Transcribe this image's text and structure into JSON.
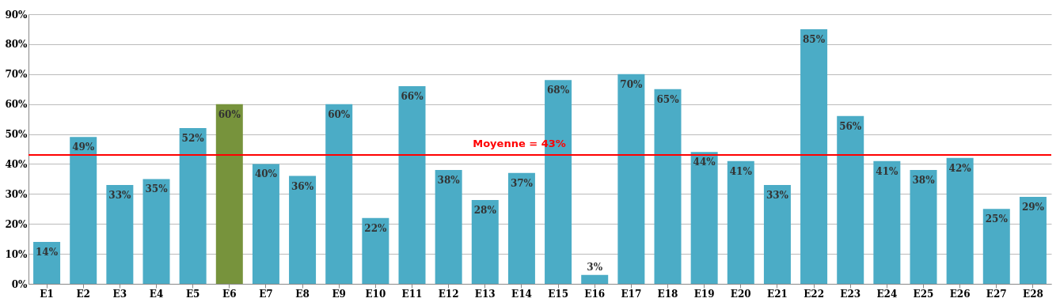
{
  "chart_data": {
    "type": "bar",
    "categories": [
      "E1",
      "E2",
      "E3",
      "E4",
      "E5",
      "E6",
      "E7",
      "E8",
      "E9",
      "E10",
      "E11",
      "E12",
      "E13",
      "E14",
      "E15",
      "E16",
      "E17",
      "E18",
      "E19",
      "E20",
      "E21",
      "E22",
      "E23",
      "E24",
      "E25",
      "E26",
      "E27",
      "E28"
    ],
    "values": [
      14,
      49,
      33,
      35,
      52,
      60,
      40,
      36,
      60,
      22,
      66,
      38,
      28,
      37,
      68,
      3,
      70,
      65,
      44,
      41,
      33,
      85,
      56,
      41,
      38,
      42,
      25,
      29
    ],
    "colors": [
      "#4bacc6",
      "#4bacc6",
      "#4bacc6",
      "#4bacc6",
      "#4bacc6",
      "#77933c",
      "#4bacc6",
      "#4bacc6",
      "#4bacc6",
      "#4bacc6",
      "#4bacc6",
      "#4bacc6",
      "#4bacc6",
      "#4bacc6",
      "#4bacc6",
      "#4bacc6",
      "#4bacc6",
      "#4bacc6",
      "#4bacc6",
      "#4bacc6",
      "#4bacc6",
      "#4bacc6",
      "#4bacc6",
      "#4bacc6",
      "#4bacc6",
      "#4bacc6",
      "#4bacc6",
      "#4bacc6"
    ],
    "value_labels": [
      "14%",
      "49%",
      "33%",
      "35%",
      "52%",
      "60%",
      "40%",
      "36%",
      "60%",
      "22%",
      "66%",
      "38%",
      "28%",
      "37%",
      "68%",
      "3%",
      "70%",
      "65%",
      "44%",
      "41%",
      "33%",
      "85%",
      "56%",
      "41%",
      "38%",
      "42%",
      "25%",
      "29%"
    ],
    "ylim": [
      0,
      90
    ],
    "yticks": [
      {
        "value": 0,
        "label": "0%"
      },
      {
        "value": 10,
        "label": "10%"
      },
      {
        "value": 20,
        "label": "20%"
      },
      {
        "value": 30,
        "label": "30%"
      },
      {
        "value": 40,
        "label": "40%"
      },
      {
        "value": 50,
        "label": "50%"
      },
      {
        "value": 60,
        "label": "60%"
      },
      {
        "value": 70,
        "label": "70%"
      },
      {
        "value": 80,
        "label": "80%"
      },
      {
        "value": 90,
        "label": "90%"
      }
    ],
    "ref_lines": [
      {
        "axis": "y",
        "value": 43,
        "label": "Moyenne = 43%",
        "color": "#ff0000"
      }
    ],
    "grid": "y"
  }
}
